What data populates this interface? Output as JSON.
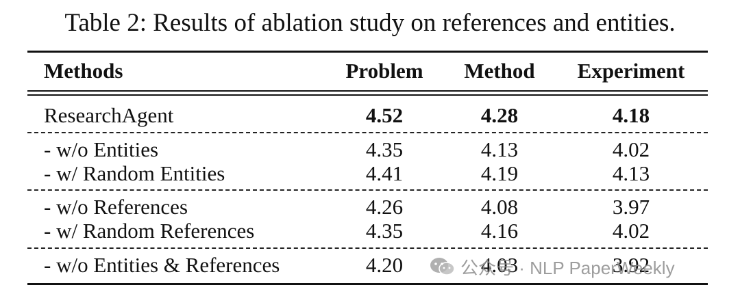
{
  "caption": "Table 2: Results of ablation study on references and entities.",
  "table": {
    "headers": [
      "Methods",
      "Problem",
      "Method",
      "Experiment"
    ],
    "rows": [
      {
        "label": "ResearchAgent",
        "problem": "4.52",
        "method": "4.28",
        "experiment": "4.18"
      },
      {
        "label": "- w/o Entities",
        "problem": "4.35",
        "method": "4.13",
        "experiment": "4.02"
      },
      {
        "label": "- w/ Random Entities",
        "problem": "4.41",
        "method": "4.19",
        "experiment": "4.13"
      },
      {
        "label": "- w/o References",
        "problem": "4.26",
        "method": "4.08",
        "experiment": "3.97"
      },
      {
        "label": "- w/ Random References",
        "problem": "4.35",
        "method": "4.16",
        "experiment": "4.02"
      },
      {
        "label": "- w/o Entities & References",
        "problem": "4.20",
        "method": "4.03",
        "experiment": "3.92"
      }
    ]
  },
  "watermark": {
    "text": "公众号 · NLP PaperWeekly",
    "icon": "wechat-icon"
  }
}
